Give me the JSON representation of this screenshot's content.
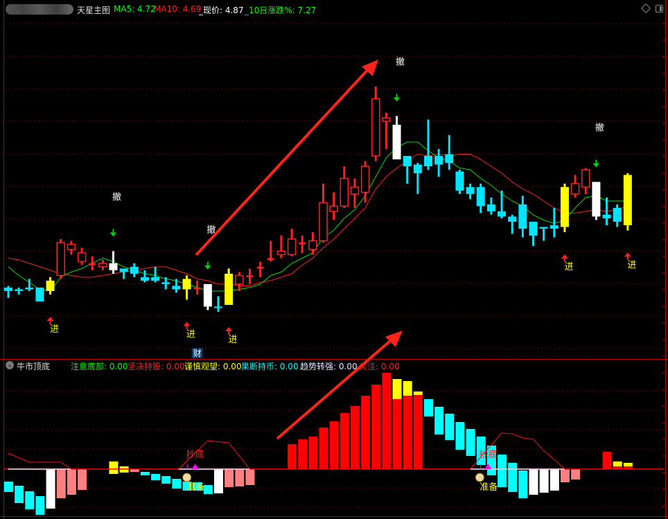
{
  "header": {
    "title": "天星主图",
    "ma5_label": "MA5: 4.72",
    "ma10_label": "MA10: 4.69",
    "price_label": "_现价: 4.87",
    "change_label": "_10日涨跌%: 7.27",
    "icons": [
      "diamond-icon",
      "panel-toggle-icon"
    ]
  },
  "sub_panel": {
    "collapse_icon": "chevron-down-icon",
    "title": "牛市顶底",
    "items": [
      {
        "label": "注意底部: 0.00",
        "color": "#00ff00"
      },
      {
        "label": "坚决持股: 0.00",
        "color": "#ff2020"
      },
      {
        "label": "谨慎观望: 0.00",
        "color": "#ffff00"
      },
      {
        "label": "果断持币: 0.00",
        "color": "#00ffff"
      },
      {
        "label": "趋势转强: 0.00",
        "color": "#e8e8ff"
      },
      {
        "label": "关注: 0.00",
        "color": "#ff2020"
      }
    ]
  },
  "labels": {
    "buy": "进",
    "sell": "撤",
    "finance_badge": "财",
    "bottom_fish": "抄底",
    "prepare": "准备"
  },
  "colors": {
    "up": "#ff2020",
    "down": "#00e5ff",
    "signal_up": "#ffff00",
    "signal_down": "#ffffff",
    "ma5": "#00e000",
    "ma10": "#ff2020",
    "pink": "#ff8080",
    "grid": "#a01010"
  },
  "chart_data": {
    "type": "candlestick",
    "candles": [
      [
        4.22,
        4.23,
        4.16,
        4.2,
        "d"
      ],
      [
        4.21,
        4.22,
        4.18,
        4.2,
        "d"
      ],
      [
        4.22,
        4.27,
        4.2,
        4.21,
        "d"
      ],
      [
        4.22,
        4.22,
        4.14,
        4.14,
        "d"
      ],
      [
        4.2,
        4.28,
        4.18,
        4.26,
        "Y"
      ],
      [
        4.29,
        4.5,
        4.27,
        4.48,
        "u"
      ],
      [
        4.44,
        4.49,
        4.41,
        4.47,
        "u"
      ],
      [
        4.37,
        4.45,
        4.35,
        4.42,
        "u"
      ],
      [
        4.35,
        4.4,
        4.32,
        4.36,
        "u"
      ],
      [
        4.34,
        4.38,
        4.32,
        4.36,
        "u"
      ],
      [
        4.36,
        4.43,
        4.3,
        4.32,
        "W"
      ],
      [
        4.33,
        4.33,
        4.27,
        4.31,
        "d"
      ],
      [
        4.34,
        4.36,
        4.28,
        4.3,
        "d"
      ],
      [
        4.28,
        4.32,
        4.25,
        4.26,
        "d"
      ],
      [
        4.28,
        4.34,
        4.25,
        4.26,
        "d"
      ],
      [
        4.25,
        4.28,
        4.21,
        4.24,
        "d"
      ],
      [
        4.23,
        4.27,
        4.19,
        4.21,
        "d"
      ],
      [
        4.21,
        4.29,
        4.15,
        4.27,
        "Y"
      ],
      [
        4.22,
        4.26,
        4.18,
        4.22,
        "u"
      ],
      [
        4.24,
        4.24,
        4.09,
        4.11,
        "W"
      ],
      [
        4.11,
        4.17,
        4.08,
        4.11,
        "d"
      ],
      [
        4.12,
        4.33,
        4.12,
        4.3,
        "Y"
      ],
      [
        4.24,
        4.31,
        4.2,
        4.29,
        "u"
      ],
      [
        4.28,
        4.33,
        4.24,
        4.29,
        "u"
      ],
      [
        4.33,
        4.37,
        4.28,
        4.34,
        "u"
      ],
      [
        4.38,
        4.49,
        4.37,
        4.39,
        "u"
      ],
      [
        4.41,
        4.52,
        4.39,
        4.43,
        "u"
      ],
      [
        4.41,
        4.56,
        4.4,
        4.5,
        "u"
      ],
      [
        4.47,
        4.52,
        4.42,
        4.48,
        "u"
      ],
      [
        4.44,
        4.54,
        4.41,
        4.49,
        "u"
      ],
      [
        4.49,
        4.82,
        4.48,
        4.71,
        "u"
      ],
      [
        4.66,
        4.77,
        4.61,
        4.69,
        "u"
      ],
      [
        4.69,
        4.92,
        4.68,
        4.85,
        "u"
      ],
      [
        4.76,
        4.85,
        4.68,
        4.8,
        "u"
      ],
      [
        4.77,
        4.95,
        4.71,
        4.92,
        "u"
      ],
      [
        4.98,
        5.38,
        4.95,
        5.31,
        "u"
      ],
      [
        5.18,
        5.23,
        5.02,
        5.2,
        "u"
      ],
      [
        5.16,
        5.21,
        4.96,
        4.96,
        "W"
      ],
      [
        4.98,
        4.98,
        4.82,
        4.92,
        "d"
      ],
      [
        4.93,
        4.94,
        4.76,
        4.88,
        "d"
      ],
      [
        4.98,
        5.19,
        4.9,
        4.92,
        "d"
      ],
      [
        4.98,
        5.02,
        4.86,
        4.93,
        "d"
      ],
      [
        4.99,
        5.1,
        4.9,
        4.94,
        "d"
      ],
      [
        4.89,
        4.9,
        4.76,
        4.78,
        "d"
      ],
      [
        4.8,
        4.82,
        4.73,
        4.76,
        "d"
      ],
      [
        4.8,
        4.82,
        4.65,
        4.69,
        "d"
      ],
      [
        4.7,
        4.74,
        4.64,
        4.66,
        "d"
      ],
      [
        4.66,
        4.78,
        4.62,
        4.63,
        "d"
      ],
      [
        4.63,
        4.64,
        4.53,
        4.6,
        "d"
      ],
      [
        4.7,
        4.75,
        4.51,
        4.56,
        "d"
      ],
      [
        4.6,
        4.6,
        4.46,
        4.52,
        "d"
      ],
      [
        4.57,
        4.57,
        4.49,
        4.56,
        "d"
      ],
      [
        4.58,
        4.68,
        4.51,
        4.56,
        "d"
      ],
      [
        4.57,
        4.82,
        4.54,
        4.8,
        "Y"
      ],
      [
        4.76,
        4.87,
        4.74,
        4.82,
        "u"
      ],
      [
        4.8,
        4.91,
        4.76,
        4.9,
        "u"
      ],
      [
        4.83,
        4.83,
        4.61,
        4.63,
        "W"
      ],
      [
        4.64,
        4.74,
        4.58,
        4.62,
        "d"
      ],
      [
        4.68,
        4.7,
        4.57,
        4.6,
        "d"
      ],
      [
        4.58,
        4.88,
        4.55,
        4.87,
        "Y"
      ]
    ],
    "ma5": [
      4.34,
      4.29,
      4.25,
      4.21,
      4.2,
      4.28,
      4.31,
      4.33,
      4.36,
      4.39,
      4.37,
      4.34,
      4.32,
      4.3,
      4.29,
      4.27,
      4.26,
      4.24,
      4.22,
      4.2,
      4.2,
      4.2,
      4.21,
      4.22,
      4.24,
      4.29,
      4.31,
      4.36,
      4.39,
      4.42,
      4.51,
      4.55,
      4.62,
      4.67,
      4.75,
      4.86,
      4.97,
      5.03,
      5.06,
      5.06,
      5.01,
      4.97,
      4.95,
      4.91,
      4.9,
      4.85,
      4.81,
      4.76,
      4.72,
      4.69,
      4.64,
      4.61,
      4.59,
      4.61,
      4.68,
      4.74,
      4.75,
      4.72,
      4.72,
      4.72
    ],
    "ma10": [
      4.39,
      4.38,
      4.36,
      4.34,
      4.32,
      4.3,
      4.29,
      4.28,
      4.28,
      4.29,
      4.3,
      4.31,
      4.32,
      4.33,
      4.34,
      4.34,
      4.32,
      4.3,
      4.27,
      4.26,
      4.24,
      4.24,
      4.23,
      4.23,
      4.25,
      4.26,
      4.28,
      4.3,
      4.35,
      4.39,
      4.45,
      4.5,
      4.56,
      4.62,
      4.68,
      4.79,
      4.86,
      4.91,
      4.95,
      4.99,
      4.98,
      4.99,
      4.98,
      4.99,
      4.99,
      4.96,
      4.92,
      4.88,
      4.83,
      4.79,
      4.76,
      4.72,
      4.68,
      4.65,
      4.65,
      4.66,
      4.67,
      4.66,
      4.67,
      4.69
    ],
    "buy_signals": [
      5,
      18,
      22,
      54,
      60
    ],
    "sell_signals": [
      11,
      20,
      38,
      57
    ],
    "finance_marker": 19,
    "indicator_bars": [
      [
        1,
        -1.8,
        -3.3,
        "cyan"
      ],
      [
        2,
        -2.4,
        -4.9,
        "cyan"
      ],
      [
        3,
        -3.2,
        -5.8,
        "cyan"
      ],
      [
        4,
        -3.9,
        -6.6,
        "cyan"
      ],
      [
        5,
        0,
        -5.7,
        "white"
      ],
      [
        6,
        0,
        -4.2,
        "pink"
      ],
      [
        7,
        0,
        -3.7,
        "pink"
      ],
      [
        8,
        0,
        -3.0,
        "pink"
      ],
      [
        11,
        1.1,
        -0.7,
        "yellow"
      ],
      [
        12,
        0.4,
        -0.5,
        "yellow"
      ],
      [
        13,
        0,
        -0.4,
        "pink"
      ],
      [
        14,
        -0.4,
        -0.9,
        "cyan"
      ],
      [
        15,
        -0.7,
        -1.6,
        "cyan"
      ],
      [
        16,
        -1.0,
        -2.1,
        "cyan"
      ],
      [
        17,
        -1.4,
        -2.8,
        "cyan"
      ],
      [
        18,
        -1.8,
        -3.1,
        "cyan"
      ],
      [
        19,
        -1.9,
        -3.1,
        "cyan"
      ],
      [
        20,
        -2.3,
        -3.6,
        "cyan"
      ],
      [
        21,
        0,
        -3.5,
        "white"
      ],
      [
        22,
        0,
        -2.6,
        "pink"
      ],
      [
        23,
        0,
        -2.5,
        "pink"
      ],
      [
        24,
        0,
        -2.3,
        "pink"
      ],
      [
        28,
        3.6,
        0,
        "red"
      ],
      [
        29,
        4.3,
        0,
        "red"
      ],
      [
        30,
        4.7,
        0,
        "red"
      ],
      [
        31,
        6.0,
        0,
        "red"
      ],
      [
        32,
        6.9,
        0,
        "red"
      ],
      [
        33,
        8.1,
        0,
        "red"
      ],
      [
        34,
        9.1,
        0,
        "red"
      ],
      [
        35,
        10.6,
        0,
        "red"
      ],
      [
        36,
        12.2,
        0,
        "red"
      ],
      [
        37,
        13.9,
        0,
        "red"
      ],
      [
        38,
        13.0,
        10.1,
        "yellow"
      ],
      [
        38,
        10.1,
        0,
        "red"
      ],
      [
        39,
        12.7,
        10.6,
        "yellow"
      ],
      [
        39,
        10.6,
        0,
        "red"
      ],
      [
        40,
        11.2,
        10.7,
        "yellow"
      ],
      [
        40,
        10.7,
        0,
        "red"
      ],
      [
        41,
        10.1,
        7.6,
        "cyan"
      ],
      [
        42,
        9.0,
        5.0,
        "cyan"
      ],
      [
        43,
        8.0,
        4.2,
        "cyan"
      ],
      [
        44,
        6.8,
        2.8,
        "cyan"
      ],
      [
        45,
        5.8,
        1.9,
        "cyan"
      ],
      [
        46,
        4.7,
        0.6,
        "cyan"
      ],
      [
        47,
        3.4,
        -0.9,
        "cyan"
      ],
      [
        48,
        2.1,
        -2.6,
        "cyan"
      ],
      [
        49,
        0.9,
        -3.3,
        "cyan"
      ],
      [
        50,
        -0.2,
        -4.2,
        "cyan"
      ],
      [
        51,
        0,
        -3.7,
        "white"
      ],
      [
        52,
        0,
        -3.4,
        "white"
      ],
      [
        53,
        0,
        -3.1,
        "white"
      ],
      [
        54,
        0,
        -1.9,
        "pink"
      ],
      [
        55,
        0,
        -1.5,
        "pink"
      ],
      [
        58,
        2.5,
        0,
        "red"
      ],
      [
        59,
        1.1,
        0.4,
        "yellow"
      ],
      [
        59,
        0.4,
        0,
        "red"
      ],
      [
        60,
        0.9,
        0.4,
        "yellow"
      ],
      [
        60,
        0.4,
        0,
        "red"
      ]
    ],
    "indicator_line_segments": [
      [
        [
          1,
          2.3
        ],
        [
          3,
          1.0
        ],
        [
          6,
          1.0
        ],
        [
          7,
          0
        ]
      ],
      [
        [
          17.2,
          0
        ],
        [
          20,
          4.1
        ],
        [
          22,
          3.8
        ],
        [
          24,
          0
        ]
      ],
      [
        [
          45,
          0
        ],
        [
          48,
          5.2
        ],
        [
          49,
          5.1
        ],
        [
          50,
          4.5
        ],
        [
          51,
          4.3
        ],
        [
          52,
          2.7
        ],
        [
          53,
          1.4
        ],
        [
          54,
          0
        ]
      ]
    ],
    "bottom_signals": [
      18.8,
      46.7
    ]
  }
}
